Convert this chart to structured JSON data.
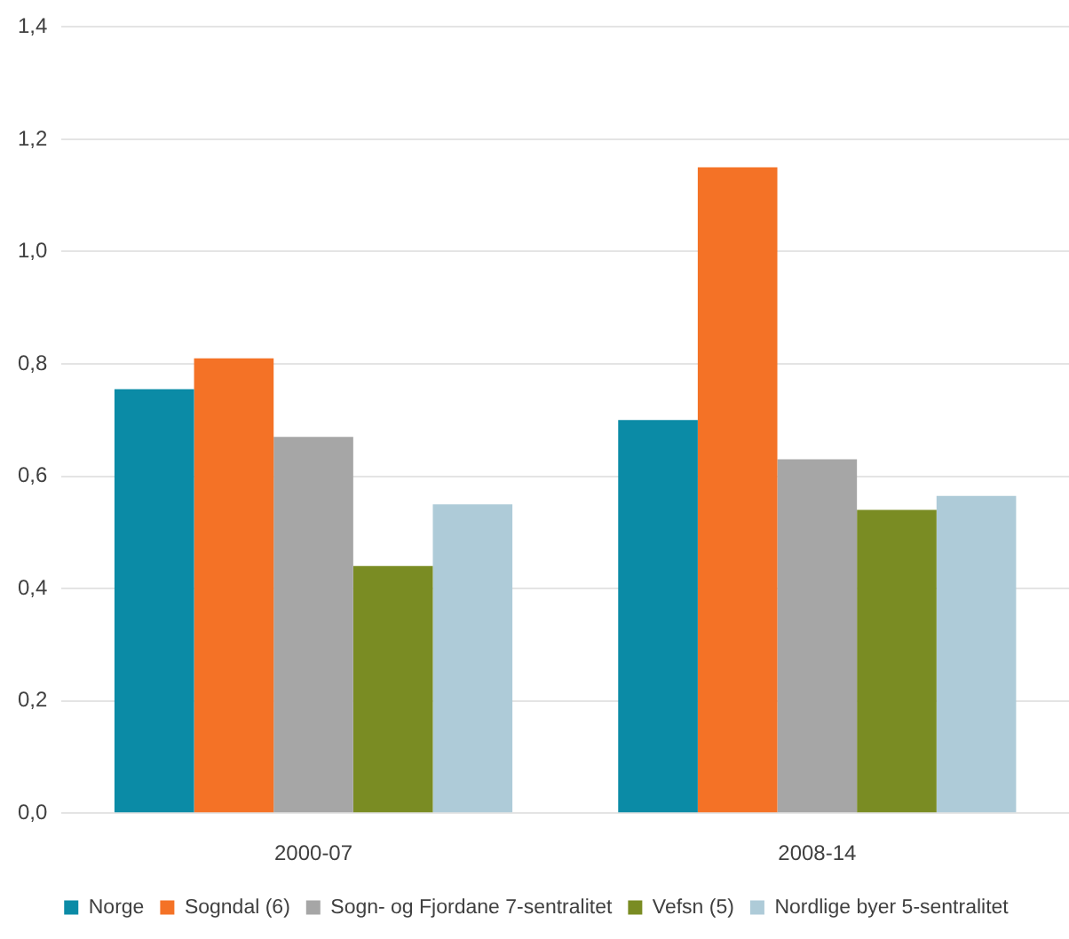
{
  "chart_data": {
    "type": "bar",
    "categories": [
      "2000-07",
      "2008-14"
    ],
    "series": [
      {
        "name": "Norge",
        "color": "#0b8ba6",
        "values": [
          0.755,
          0.7
        ]
      },
      {
        "name": "Sogndal (6)",
        "color": "#f47226",
        "values": [
          0.81,
          1.15
        ]
      },
      {
        "name": "Sogn- og Fjordane 7-sentralitet",
        "color": "#a6a6a6",
        "values": [
          0.67,
          0.63
        ]
      },
      {
        "name": "Vefsn (5)",
        "color": "#7a8c23",
        "values": [
          0.44,
          0.54
        ]
      },
      {
        "name": "Nordlige byer 5-sentralitet",
        "color": "#aecbd8",
        "values": [
          0.55,
          0.565
        ]
      }
    ],
    "ylim": [
      0,
      1.4
    ],
    "yticks": [
      {
        "value": 0,
        "label": "0,0"
      },
      {
        "value": 0.2,
        "label": "0,2"
      },
      {
        "value": 0.4,
        "label": "0,4"
      },
      {
        "value": 0.6,
        "label": "0,6"
      },
      {
        "value": 0.8,
        "label": "0,8"
      },
      {
        "value": 1.0,
        "label": "1,0"
      },
      {
        "value": 1.2,
        "label": "1,2"
      },
      {
        "value": 1.4,
        "label": "1,4"
      }
    ],
    "grid": "y",
    "legend": "bottom"
  }
}
